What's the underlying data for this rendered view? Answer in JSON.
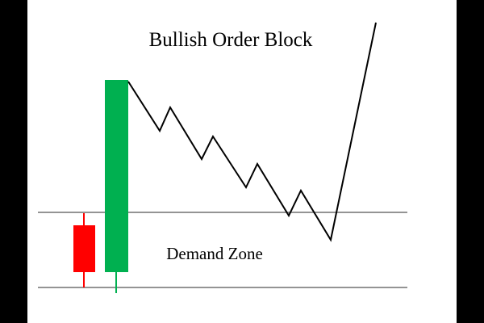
{
  "diagram": {
    "title": "Bullish Order Block",
    "zone_label": "Demand Zone",
    "colors": {
      "background": "#ffffff",
      "frame": "#000000",
      "bearish_candle": "#ff0000",
      "bullish_candle": "#00b050",
      "price_line": "#000000",
      "zone_lines": "#555555"
    }
  }
}
